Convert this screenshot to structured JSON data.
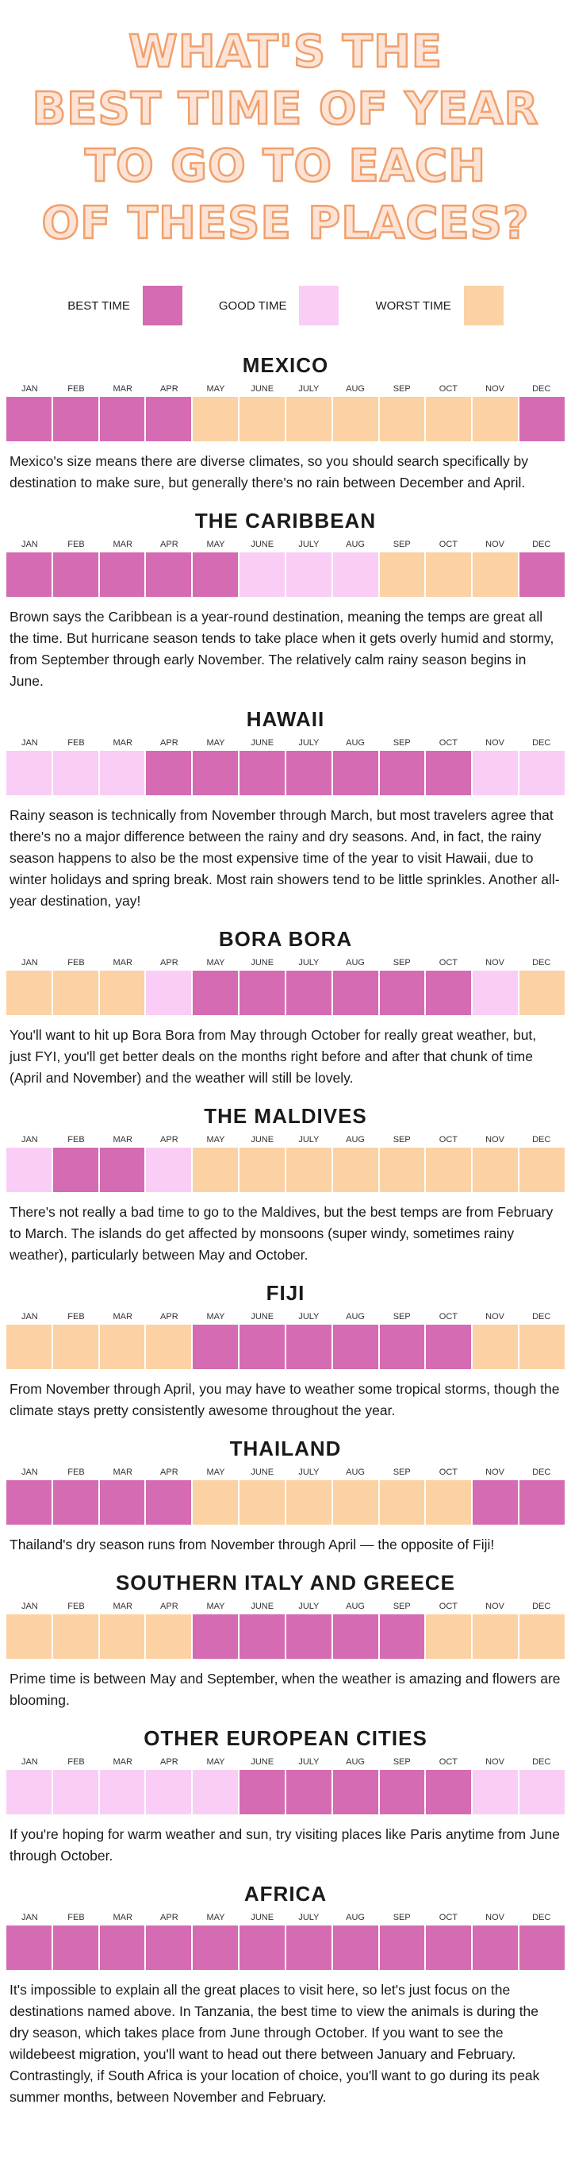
{
  "header": {
    "title_lines": [
      "WHAT'S THE",
      "BEST TIME OF YEAR",
      "TO GO TO EACH",
      "OF THESE PLACES?"
    ]
  },
  "legend": [
    {
      "label": "BEST TIME",
      "color": "#d56bb2"
    },
    {
      "label": "GOOD TIME",
      "color": "#f9cdf5"
    },
    {
      "label": "WORST TIME",
      "color": "#fcd1a3"
    }
  ],
  "months": [
    "JAN",
    "FEB",
    "MAR",
    "APR",
    "MAY",
    "JUNE",
    "JULY",
    "AUG",
    "SEP",
    "OCT",
    "NOV",
    "DEC"
  ],
  "places": [
    {
      "name": "MEXICO",
      "status": [
        "BEST TIME",
        "BEST TIME",
        "BEST TIME",
        "BEST TIME",
        "WORST TIME",
        "WORST TIME",
        "WORST TIME",
        "WORST TIME",
        "WORST TIME",
        "WORST TIME",
        "WORST TIME",
        "BEST TIME"
      ],
      "text": "Mexico's size means there are diverse climates, so you should search specifically by destination to make sure, but generally there's no rain between December and April."
    },
    {
      "name": "THE CARIBBEAN",
      "status": [
        "BEST TIME",
        "BEST TIME",
        "BEST TIME",
        "BEST TIME",
        "BEST TIME",
        "GOOD TIME",
        "GOOD TIME",
        "GOOD TIME",
        "WORST TIME",
        "WORST TIME",
        "WORST TIME",
        "BEST TIME"
      ],
      "text": "Brown says the Caribbean is a year-round destination, meaning the temps are great all the time. But hurricane season tends to take place when it gets overly humid and stormy, from September through early November. The relatively calm rainy season begins in June."
    },
    {
      "name": "HAWAII",
      "status": [
        "GOOD TIME",
        "GOOD TIME",
        "GOOD TIME",
        "BEST TIME",
        "BEST TIME",
        "BEST TIME",
        "BEST TIME",
        "BEST TIME",
        "BEST TIME",
        "BEST TIME",
        "GOOD TIME",
        "GOOD TIME"
      ],
      "text": "Rainy season is technically from November through March, but most travelers agree that there's no a major difference between the rainy and dry seasons. And, in fact, the rainy season happens to also be the most expensive time of the year to visit Hawaii, due to winter holidays and spring break. Most rain showers tend to be little sprinkles. Another all-year destination, yay!"
    },
    {
      "name": "BORA BORA",
      "status": [
        "WORST TIME",
        "WORST TIME",
        "WORST TIME",
        "GOOD TIME",
        "BEST TIME",
        "BEST TIME",
        "BEST TIME",
        "BEST TIME",
        "BEST TIME",
        "BEST TIME",
        "GOOD TIME",
        "WORST TIME"
      ],
      "text": "You'll want to hit up Bora Bora from May through October for really great weather, but, just FYI, you'll get better deals on the months right before and after that chunk of time (April and November) and the weather will still be lovely."
    },
    {
      "name": "THE MALDIVES",
      "status": [
        "GOOD TIME",
        "BEST TIME",
        "BEST TIME",
        "GOOD TIME",
        "WORST TIME",
        "WORST TIME",
        "WORST TIME",
        "WORST TIME",
        "WORST TIME",
        "WORST TIME",
        "WORST TIME",
        "WORST TIME"
      ],
      "text": "There's not really a bad time to go to the Maldives, but the best temps are from February to March. The islands do get affected by monsoons (super windy, sometimes rainy weather), particularly between May and October."
    },
    {
      "name": "FIJI",
      "status": [
        "WORST TIME",
        "WORST TIME",
        "WORST TIME",
        "WORST TIME",
        "BEST TIME",
        "BEST TIME",
        "BEST TIME",
        "BEST TIME",
        "BEST TIME",
        "BEST TIME",
        "WORST TIME",
        "WORST TIME"
      ],
      "text": "From November through April, you may have to weather some tropical storms, though the climate stays pretty consistently awesome throughout the year."
    },
    {
      "name": "THAILAND",
      "status": [
        "BEST TIME",
        "BEST TIME",
        "BEST TIME",
        "BEST TIME",
        "WORST TIME",
        "WORST TIME",
        "WORST TIME",
        "WORST TIME",
        "WORST TIME",
        "WORST TIME",
        "BEST TIME",
        "BEST TIME"
      ],
      "text": "Thailand's dry season runs from November through April — the opposite of Fiji!"
    },
    {
      "name": "SOUTHERN ITALY AND GREECE",
      "status": [
        "WORST TIME",
        "WORST TIME",
        "WORST TIME",
        "WORST TIME",
        "BEST TIME",
        "BEST TIME",
        "BEST TIME",
        "BEST TIME",
        "BEST TIME",
        "WORST TIME",
        "WORST TIME",
        "WORST TIME"
      ],
      "text": "Prime time is between May and September, when the weather is amazing and flowers are blooming."
    },
    {
      "name": "OTHER EUROPEAN CITIES",
      "status": [
        "GOOD TIME",
        "GOOD TIME",
        "GOOD TIME",
        "GOOD TIME",
        "GOOD TIME",
        "BEST TIME",
        "BEST TIME",
        "BEST TIME",
        "BEST TIME",
        "BEST TIME",
        "GOOD TIME",
        "GOOD TIME"
      ],
      "text": "If you're hoping for warm weather and sun, try visiting places like Paris anytime from June through October."
    },
    {
      "name": "AFRICA",
      "status": [
        "BEST TIME",
        "BEST TIME",
        "BEST TIME",
        "BEST TIME",
        "BEST TIME",
        "BEST TIME",
        "BEST TIME",
        "BEST TIME",
        "BEST TIME",
        "BEST TIME",
        "BEST TIME",
        "BEST TIME"
      ],
      "text": "It's impossible to explain all the great places to visit here, so let's just focus on the destinations named above. In Tanzania, the best time to view the animals is during the dry season, which takes place from June through October. If you want to see the wildebeest migration, you'll want to head out there between January and February. Contrastingly, if South Africa is your location of choice, you'll want to go during its peak summer months, between November and February."
    }
  ]
}
